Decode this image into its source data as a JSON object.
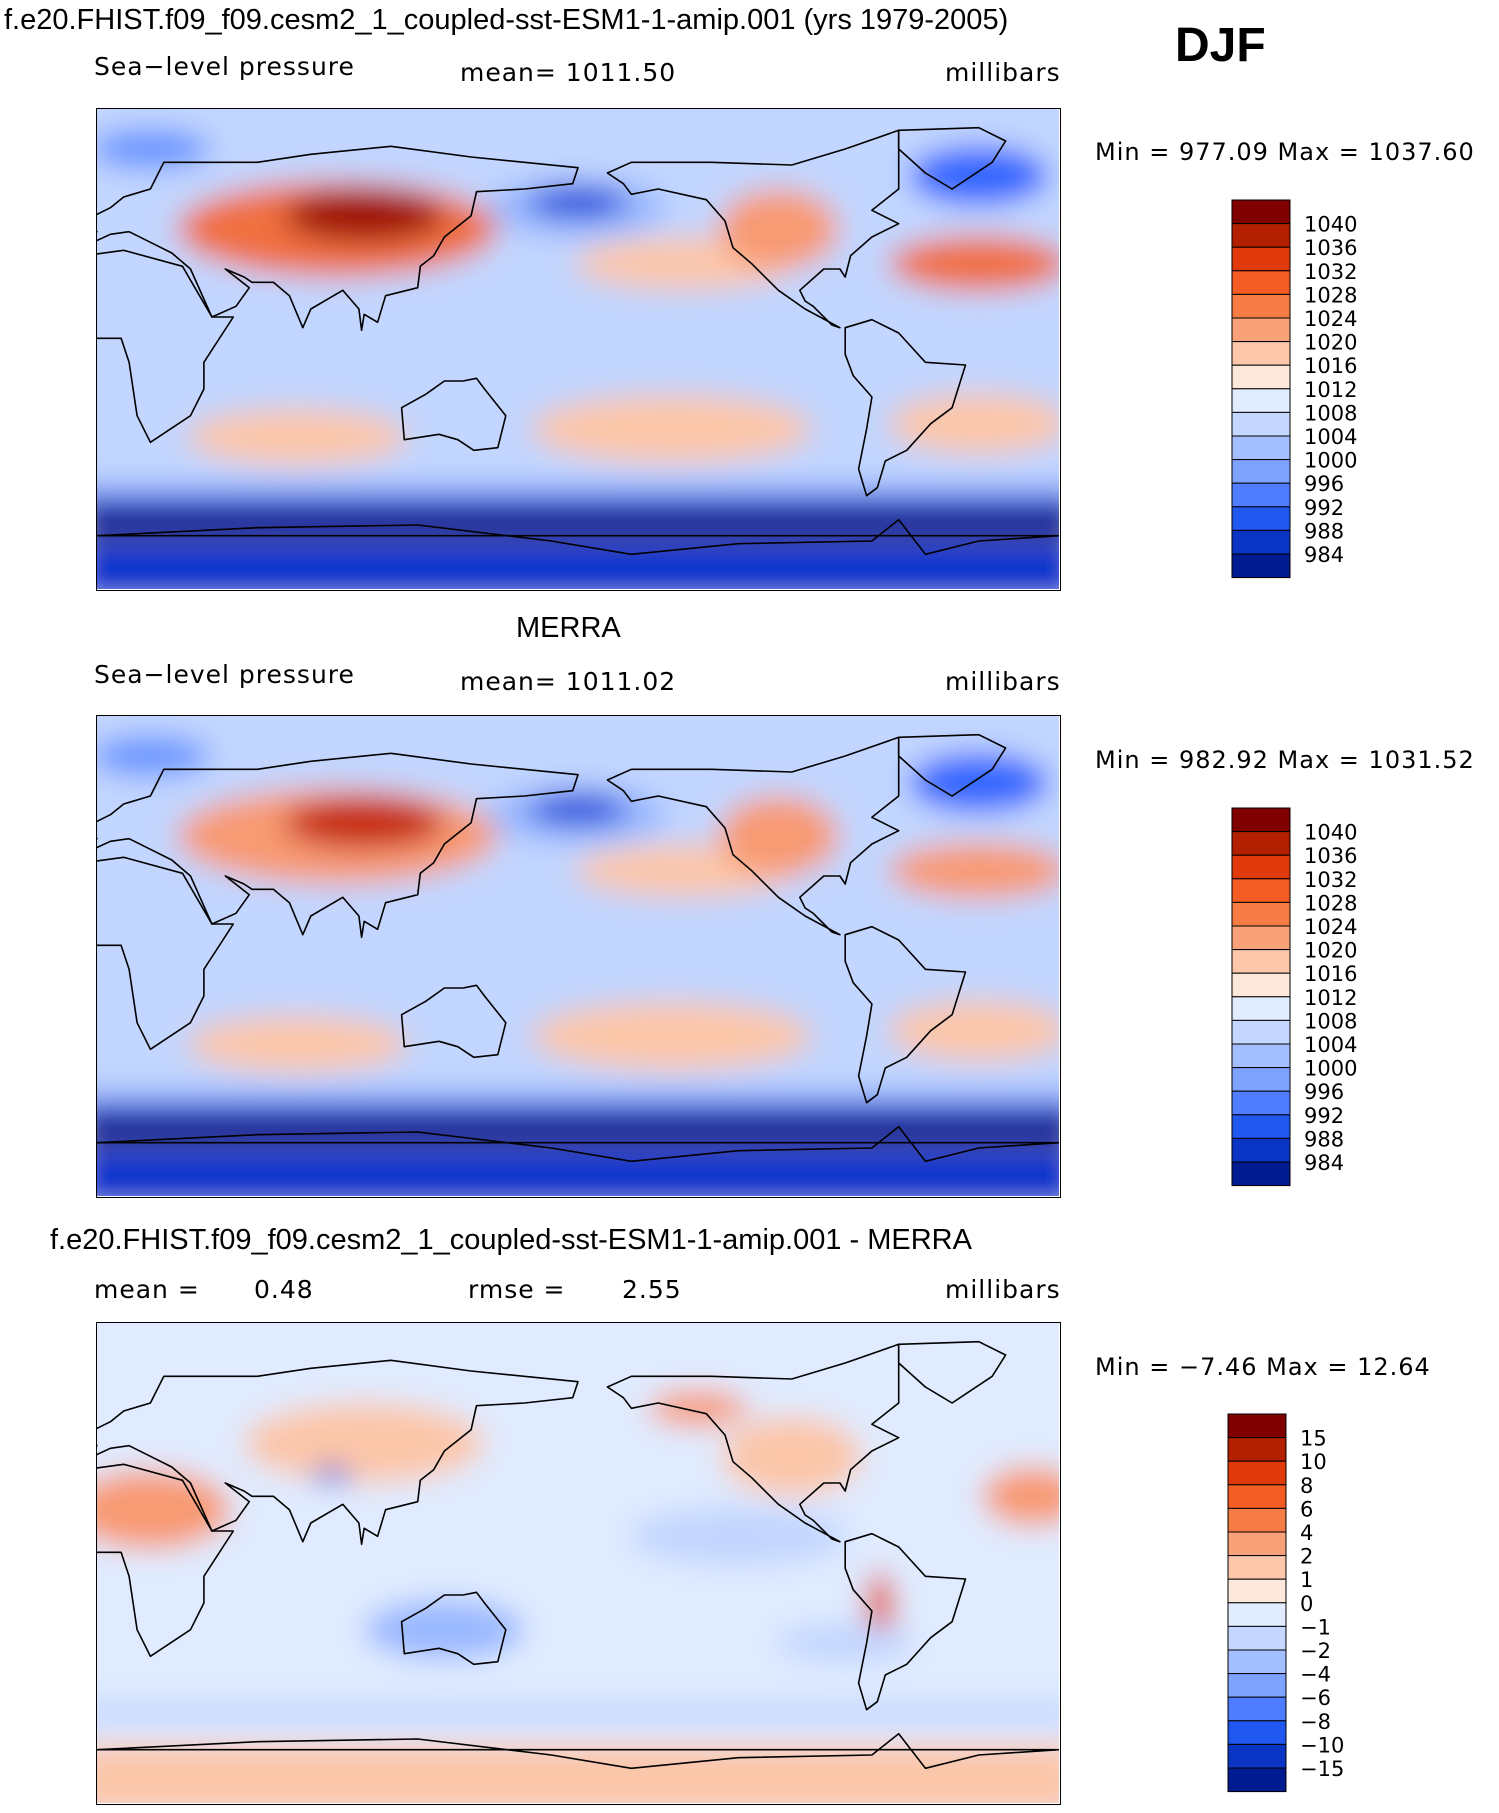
{
  "header": {
    "run_title": "f.e20.FHIST.f09_f09.cesm2_1_coupled-sst-ESM1-1-amip.001 (yrs 1979-2005)",
    "season": "DJF"
  },
  "colors": {
    "contour_ramp": [
      "#000080",
      "#001aa6",
      "#0033cc",
      "#1a4ddb",
      "#3366ff",
      "#6694ff",
      "#99b8ff",
      "#c2d6ff",
      "#e0ebff",
      "#fde8dc",
      "#fcc6a8",
      "#f89a72",
      "#f0703f",
      "#e34c1f",
      "#c62a0e",
      "#9e1006",
      "#700000"
    ]
  },
  "chart_data": [
    {
      "type": "heatmap",
      "panel": "model",
      "title": "f.e20.FHIST.f09_f09.cesm2_1_coupled-sst-ESM1-1-amip.001 (yrs 1979-2005)",
      "variable": "Sea−level pressure",
      "mean_text": "mean=  1011.50",
      "units": "millibars",
      "min_max_text": "Min  =  977.09  Max  =  1037.60",
      "min": 977.09,
      "max": 1037.6,
      "mean": 1011.5,
      "colorbar_levels": [
        "1040",
        "1036",
        "1032",
        "1028",
        "1024",
        "1020",
        "1016",
        "1012",
        "1008",
        "1004",
        "1000",
        "996",
        "992",
        "988",
        "984"
      ],
      "colorbar_colors": [
        "#800000",
        "#b22000",
        "#e03a0a",
        "#f35c22",
        "#f67c45",
        "#f9a27a",
        "#fcc7aa",
        "#fde9dc",
        "#e2ecff",
        "#c5d7ff",
        "#a3bfff",
        "#7ea3ff",
        "#4f7dff",
        "#1f57f0",
        "#0a34c4",
        "#001a8f"
      ]
    },
    {
      "type": "heatmap",
      "panel": "obs",
      "title": "MERRA",
      "variable": "Sea−level pressure",
      "mean_text": "mean=  1011.02",
      "units": "millibars",
      "min_max_text": "Min  =  982.92  Max  =  1031.52",
      "min": 982.92,
      "max": 1031.52,
      "mean": 1011.02,
      "colorbar_levels": [
        "1040",
        "1036",
        "1032",
        "1028",
        "1024",
        "1020",
        "1016",
        "1012",
        "1008",
        "1004",
        "1000",
        "996",
        "992",
        "988",
        "984"
      ],
      "colorbar_colors": [
        "#800000",
        "#b22000",
        "#e03a0a",
        "#f35c22",
        "#f67c45",
        "#f9a27a",
        "#fcc7aa",
        "#fde9dc",
        "#e2ecff",
        "#c5d7ff",
        "#a3bfff",
        "#7ea3ff",
        "#4f7dff",
        "#1f57f0",
        "#0a34c4",
        "#001a8f"
      ]
    },
    {
      "type": "heatmap",
      "panel": "difference",
      "title": "f.e20.FHIST.f09_f09.cesm2_1_coupled-sst-ESM1-1-amip.001 - MERRA",
      "mean_label": "mean =",
      "mean_value": "0.48",
      "rmse_label": "rmse =",
      "rmse_value": "2.55",
      "units": "millibars",
      "min_max_text": "Min  =   −7.46  Max  =    12.64",
      "min": -7.46,
      "max": 12.64,
      "mean": 0.48,
      "rmse": 2.55,
      "colorbar_levels": [
        "15",
        "10",
        "8",
        "6",
        "4",
        "2",
        "1",
        "0",
        "−1",
        "−2",
        "−4",
        "−6",
        "−8",
        "−10",
        "−15"
      ],
      "colorbar_colors": [
        "#800000",
        "#b22000",
        "#e03a0a",
        "#f35c22",
        "#f67c45",
        "#f9a27a",
        "#fcc7aa",
        "#fde9dc",
        "#e2ecff",
        "#c5d7ff",
        "#a3bfff",
        "#7ea3ff",
        "#4f7dff",
        "#1f57f0",
        "#0a34c4",
        "#001a8f"
      ]
    }
  ]
}
